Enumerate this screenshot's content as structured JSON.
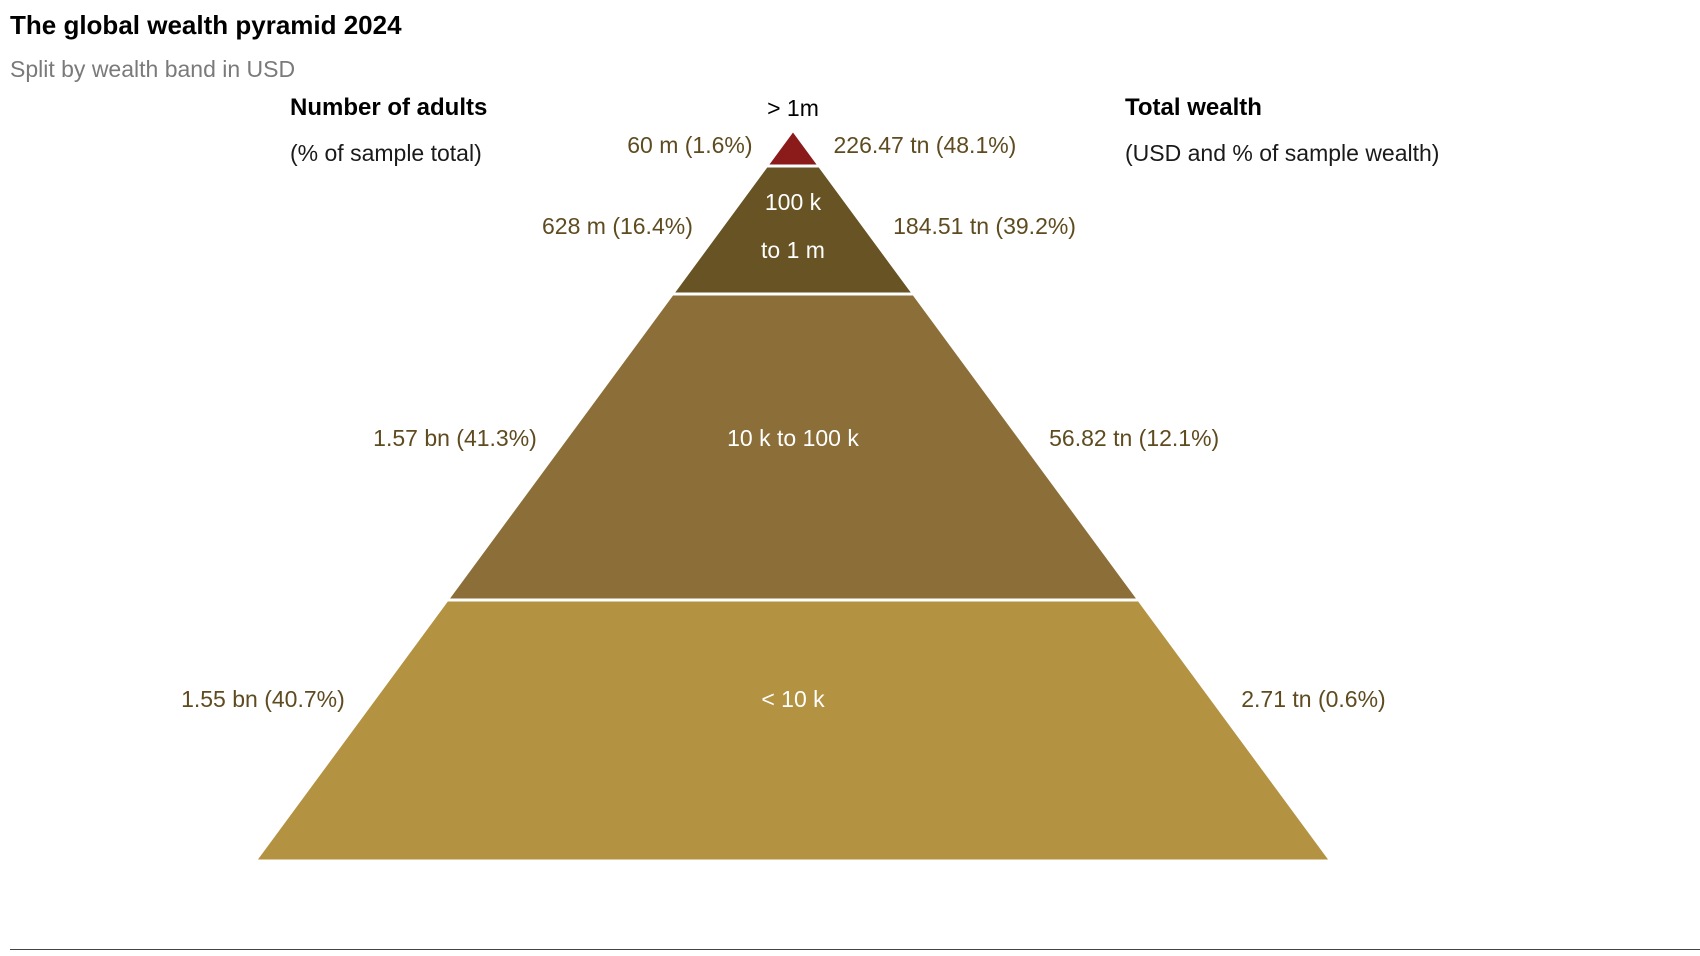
{
  "title": "The global wealth pyramid 2024",
  "subtitle": "Split by wealth band in USD",
  "left_header": {
    "title": "Number of adults",
    "subtitle": "(% of sample total)"
  },
  "right_header": {
    "title": "Total wealth",
    "subtitle": "(USD and % of sample wealth)"
  },
  "colors": {
    "label_text": "#5e4b20",
    "inside_text": "#ffffff",
    "top_label": "#000000"
  },
  "chart_data": {
    "type": "pyramid",
    "bands": [
      {
        "band": "> 1m",
        "band_lines": [
          "> 1m"
        ],
        "label_position": "above",
        "adults": 60000000,
        "adults_pct": 1.6,
        "adults_label": "60 m (1.6%)",
        "wealth_tn": 226.47,
        "wealth_pct": 48.1,
        "wealth_label": "226.47 tn (48.1%)",
        "color": "#8b1a1a"
      },
      {
        "band": "100 k to 1 m",
        "band_lines": [
          "100 k",
          "to 1 m"
        ],
        "label_position": "inside",
        "adults": 628000000,
        "adults_pct": 16.4,
        "adults_label": "628 m (16.4%)",
        "wealth_tn": 184.51,
        "wealth_pct": 39.2,
        "wealth_label": "184.51 tn (39.2%)",
        "color": "#675323"
      },
      {
        "band": "10 k to 100 k",
        "band_lines": [
          "10 k to 100 k"
        ],
        "label_position": "inside",
        "adults": 1570000000,
        "adults_pct": 41.3,
        "adults_label": "1.57 bn (41.3%)",
        "wealth_tn": 56.82,
        "wealth_pct": 12.1,
        "wealth_label": "56.82 tn (12.1%)",
        "color": "#8c6f38"
      },
      {
        "band": "< 10 k",
        "band_lines": [
          "< 10 k"
        ],
        "label_position": "inside",
        "adults": 1550000000,
        "adults_pct": 40.7,
        "adults_label": "1.55 bn (40.7%)",
        "wealth_tn": 2.71,
        "wealth_pct": 0.6,
        "wealth_label": "2.71 tn (0.6%)",
        "color": "#b39241"
      }
    ]
  }
}
